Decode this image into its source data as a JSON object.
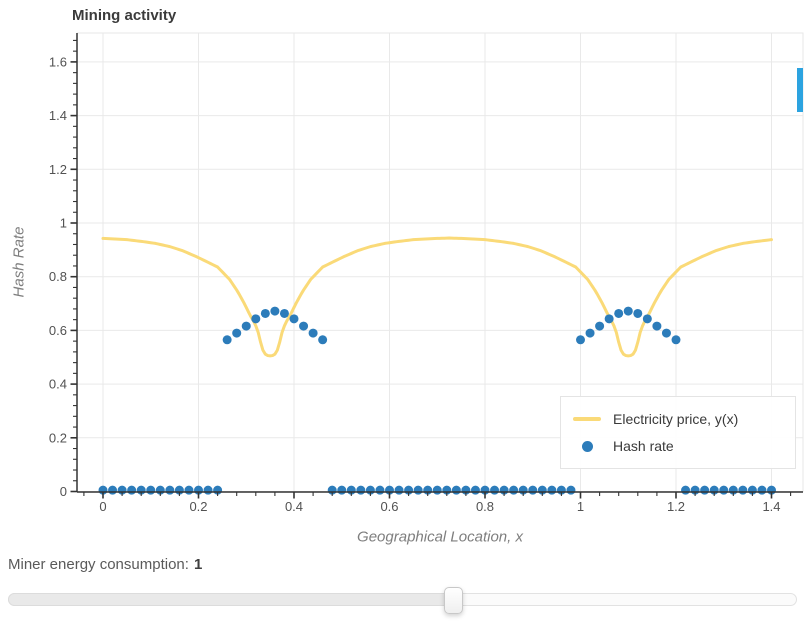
{
  "chart_data": {
    "type": "line+scatter",
    "title": "Mining activity",
    "xlabel": "Geographical Location, x",
    "ylabel": "Hash Rate",
    "x_ticks": [
      0,
      0.2,
      0.4,
      0.6,
      0.8,
      1,
      1.2,
      1.4
    ],
    "x_tick_labels": [
      "0",
      "0.2",
      "0.4",
      "0.6",
      "0.8",
      "1",
      "1.2",
      "1.4"
    ],
    "y_ticks": [
      0,
      0.2,
      0.4,
      0.6,
      0.8,
      1,
      1.2,
      1.4,
      1.6
    ],
    "y_tick_labels": [
      "0",
      "0.2",
      "0.4",
      "0.6",
      "0.8",
      "1",
      "1.2",
      "1.4",
      "1.6"
    ],
    "x_range": [
      -0.055,
      1.466
    ],
    "y_range": [
      0,
      1.707
    ],
    "grid": true,
    "legend_position": "bottom-right",
    "series": [
      {
        "name": "Electricity price, y(x)",
        "type": "line",
        "color": "#fada78",
        "curve_model": {
          "x_domain": [
            0,
            1.4
          ],
          "dip_centers": [
            0.35,
            1.1
          ],
          "plateau": 0.944,
          "min": 0.505,
          "sample_step": 0.005,
          "dip_profile_dx_y": [
            [
              0,
              0.505
            ],
            [
              0.008,
              0.507
            ],
            [
              0.014,
              0.52
            ],
            [
              0.02,
              0.556
            ],
            [
              0.026,
              0.6
            ],
            [
              0.033,
              0.63
            ],
            [
              0.041,
              0.653
            ],
            [
              0.054,
              0.7
            ],
            [
              0.068,
              0.745
            ],
            [
              0.085,
              0.79
            ],
            [
              0.11,
              0.836
            ],
            [
              0.135,
              0.858
            ],
            [
              0.156,
              0.876
            ],
            [
              0.185,
              0.898
            ],
            [
              0.21,
              0.912
            ],
            [
              0.24,
              0.924
            ],
            [
              0.263,
              0.93
            ],
            [
              0.3,
              0.938
            ],
            [
              0.34,
              0.942
            ],
            [
              0.375,
              0.944
            ]
          ]
        }
      },
      {
        "name": "Hash rate",
        "type": "scatter",
        "color": "#2c7cba",
        "marker_radius": 4.5,
        "baseline_y": 0.005,
        "baseline_x": [
          0,
          0.02,
          0.04,
          0.06,
          0.08,
          0.1,
          0.12,
          0.14,
          0.16,
          0.18,
          0.2,
          0.22,
          0.24,
          0.48,
          0.5,
          0.52,
          0.54,
          0.56,
          0.58,
          0.6,
          0.62,
          0.64,
          0.66,
          0.68,
          0.7,
          0.72,
          0.74,
          0.76,
          0.78,
          0.8,
          0.82,
          0.84,
          0.86,
          0.88,
          0.9,
          0.92,
          0.94,
          0.96,
          0.98,
          1.22,
          1.24,
          1.26,
          1.28,
          1.3,
          1.32,
          1.34,
          1.36,
          1.38,
          1.4
        ],
        "bumps": [
          {
            "x": [
              0.26,
              0.28,
              0.3,
              0.32,
              0.34,
              0.36,
              0.38,
              0.4,
              0.42,
              0.44,
              0.46
            ],
            "y": [
              0.565,
              0.59,
              0.616,
              0.643,
              0.663,
              0.672,
              0.663,
              0.643,
              0.616,
              0.59,
              0.565
            ]
          },
          {
            "x": [
              1.0,
              1.02,
              1.04,
              1.06,
              1.08,
              1.1,
              1.12,
              1.14,
              1.16,
              1.18,
              1.2
            ],
            "y": [
              0.565,
              0.59,
              0.616,
              0.643,
              0.663,
              0.672,
              0.663,
              0.643,
              0.616,
              0.59,
              0.565
            ]
          }
        ]
      }
    ]
  },
  "colors": {
    "grid": "#e9e9e9",
    "outline": "#e7e7e7",
    "axis": "#333333",
    "tick_label": "#525252",
    "scroll_indicator": "#2ca3e0"
  },
  "controls": {
    "label": "Miner energy consumption:",
    "value": "1",
    "slider_percent": 56.6
  }
}
